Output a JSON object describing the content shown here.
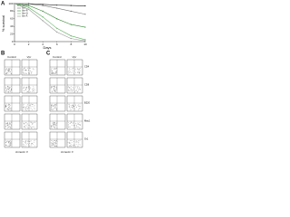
{
  "chart_data": {
    "type": "line",
    "label": "A",
    "x_label": "Days",
    "y_label": "% survival",
    "x": [
      0,
      2,
      4,
      6,
      8,
      10
    ],
    "xlim": [
      0,
      10
    ],
    "xticks": [
      0,
      2,
      4,
      6,
      8,
      10
    ],
    "ylim": [
      0,
      100
    ],
    "yticks": [
      0,
      20,
      40,
      60,
      80,
      100
    ],
    "legend": "top-left",
    "series": [
      {
        "name": "Control",
        "color": "#222222",
        "values": [
          100,
          100,
          98,
          96,
          95,
          94
        ]
      },
      {
        "name": "Vpr",
        "color": "#777777",
        "values": [
          100,
          99,
          95,
          88,
          80,
          72
        ]
      },
      {
        "name": "Vpr-R",
        "color": "#3a8a3a",
        "values": [
          100,
          95,
          80,
          60,
          45,
          38
        ]
      },
      {
        "name": "Vpr-Q",
        "color": "#5fb05f",
        "values": [
          100,
          90,
          65,
          35,
          15,
          5
        ]
      },
      {
        "name": "Vpr-A",
        "color": "#999999",
        "values": [
          100,
          85,
          55,
          25,
          8,
          2
        ]
      }
    ]
  },
  "panels": [
    {
      "label": "B",
      "columns": [
        "Control",
        "Vpr"
      ],
      "x_label": "Annexin V"
    },
    {
      "label": "C",
      "columns": [
        "Control",
        "Vpr"
      ],
      "x_label": "Annexin V",
      "rows": [
        "CD4",
        "CD8",
        "B220",
        "Mac1",
        "Gr1"
      ]
    }
  ]
}
